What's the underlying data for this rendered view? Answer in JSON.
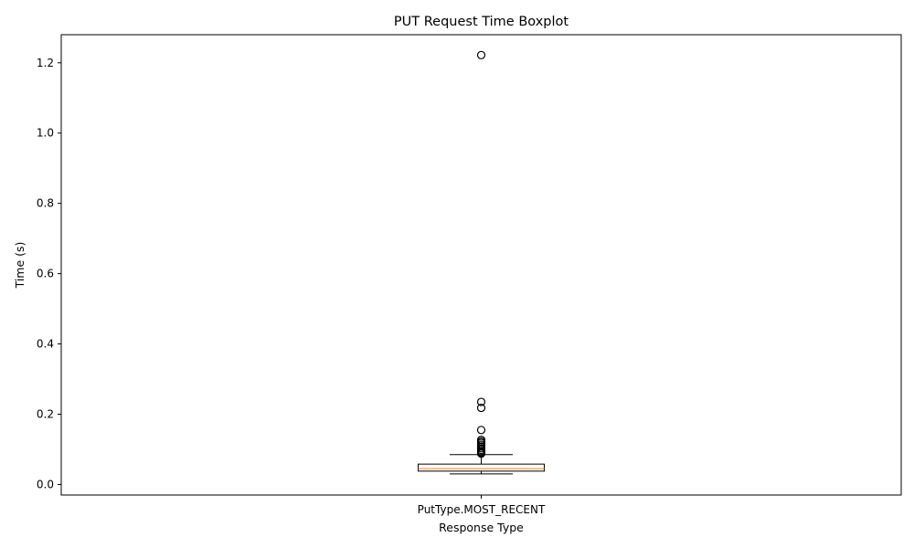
{
  "chart_data": {
    "type": "boxplot",
    "title": "PUT Request Time Boxplot",
    "xlabel": "Response Type",
    "ylabel": "Time (s)",
    "categories": [
      "PutType.MOST_RECENT"
    ],
    "ylim": [
      -0.03,
      1.28
    ],
    "yticks": [
      0.0,
      0.2,
      0.4,
      0.6,
      0.8,
      1.0,
      1.2
    ],
    "ytick_labels": [
      "0.0",
      "0.2",
      "0.4",
      "0.6",
      "0.8",
      "1.0",
      "1.2"
    ],
    "grid": false,
    "boxes": [
      {
        "category": "PutType.MOST_RECENT",
        "whisker_low": 0.03,
        "q1": 0.038,
        "median": 0.045,
        "q3": 0.058,
        "whisker_high": 0.085,
        "outliers": [
          0.088,
          0.091,
          0.094,
          0.098,
          0.103,
          0.108,
          0.113,
          0.118,
          0.122,
          0.127,
          0.155,
          0.218,
          0.235,
          1.222
        ]
      }
    ],
    "colors": {
      "box": "#000000",
      "median": "#ff7f0e",
      "outlier_edge": "#000000",
      "axes": "#000000"
    }
  }
}
